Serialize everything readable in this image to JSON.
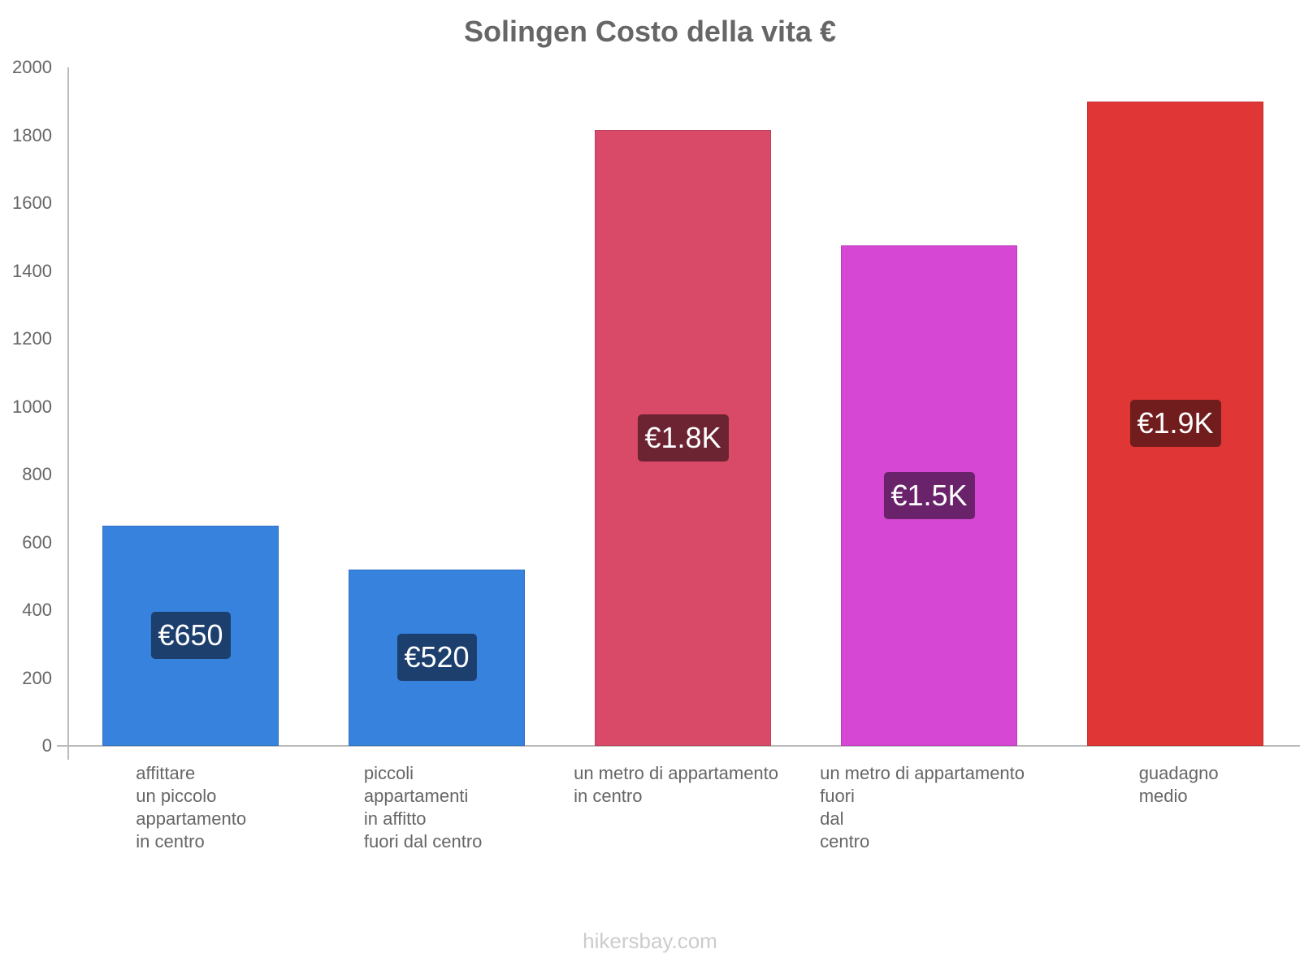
{
  "chart_data": {
    "type": "bar",
    "title": "Solingen Costo della vita €",
    "xlabel": "",
    "ylabel": "",
    "ylim": [
      0,
      2000
    ],
    "yticks": [
      0,
      200,
      400,
      600,
      800,
      1000,
      1200,
      1400,
      1600,
      1800,
      2000
    ],
    "grid": false,
    "legend": null,
    "categories": [
      "affittare un piccolo appartamento in centro",
      "piccoli appartamenti in affitto fuori dal centro",
      "un metro di appartamento in centro",
      "un metro di appartamento fuori dal centro",
      "guadagno medio"
    ],
    "values": [
      650,
      520,
      1815,
      1475,
      1900
    ],
    "data_labels": [
      "€650",
      "€520",
      "€1.8K",
      "€1.5K",
      "€1.9K"
    ],
    "colors": [
      "#3682dd",
      "#3682dd",
      "#d84a67",
      "#d647d4",
      "#e03636"
    ],
    "label_colors": [
      "#1c3f6e",
      "#1c3f6e",
      "#6c2433",
      "#6a236a",
      "#721d1d"
    ]
  },
  "title": "Solingen Costo della vita €",
  "y_axis": {
    "ticks": [
      "0",
      "200",
      "400",
      "600",
      "800",
      "1000",
      "1200",
      "1400",
      "1600",
      "1800",
      "2000"
    ]
  },
  "bars": [
    {
      "label": "€650",
      "category_lines": [
        "affittare",
        "un piccolo",
        "appartamento",
        "in centro"
      ]
    },
    {
      "label": "€520",
      "category_lines": [
        "piccoli",
        "appartamenti",
        "in affitto",
        "fuori dal centro"
      ]
    },
    {
      "label": "€1.8K",
      "category_lines": [
        "un metro di appartamento",
        "in centro"
      ]
    },
    {
      "label": "€1.5K",
      "category_lines": [
        "un metro di appartamento",
        "fuori",
        "dal",
        "centro"
      ]
    },
    {
      "label": "€1.9K",
      "category_lines": [
        "guadagno",
        "medio"
      ]
    }
  ],
  "watermark": "hikersbay.com"
}
